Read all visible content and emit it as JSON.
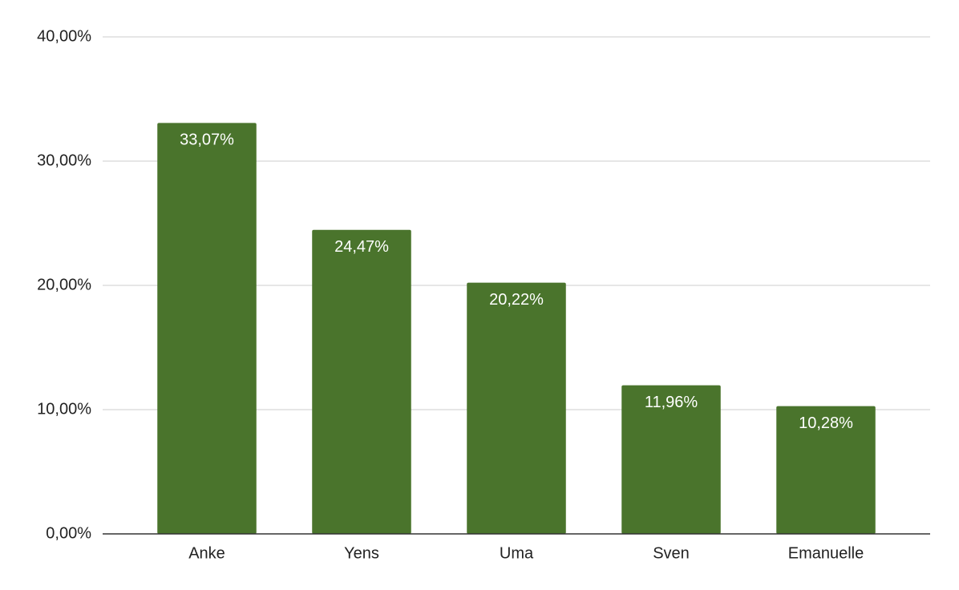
{
  "chart_data": {
    "type": "bar",
    "categories": [
      "Anke",
      "Yens",
      "Uma",
      "Sven",
      "Emanuelle"
    ],
    "values": [
      33.07,
      24.47,
      20.22,
      11.96,
      10.28
    ],
    "value_labels": [
      "33,07%",
      "24,47%",
      "20,22%",
      "11,96%",
      "10,28%"
    ],
    "color": "#4a742c",
    "ylim": [
      0,
      40
    ],
    "yticks": [
      {
        "value": 0,
        "label": "0,00%"
      },
      {
        "value": 10,
        "label": "10,00%"
      },
      {
        "value": 20,
        "label": "20,00%"
      },
      {
        "value": 30,
        "label": "30,00%"
      },
      {
        "value": 40,
        "label": "40,00%"
      }
    ],
    "grid": true
  }
}
